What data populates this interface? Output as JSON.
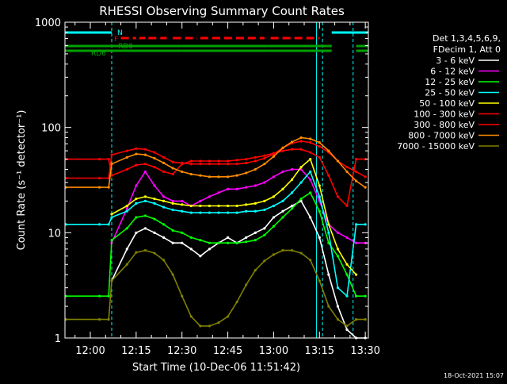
{
  "chart_data": {
    "type": "line",
    "title": "RHESSI Observing Summary Count Rates",
    "xlabel": "Start Time (10-Dec-06 11:51:42)",
    "ylabel": "Count Rate (s⁻¹ detector⁻¹)",
    "yscale": "log",
    "ylim": [
      1,
      1000
    ],
    "xlim": [
      "11:51:42",
      "13:31:00"
    ],
    "x_ticks": [
      "12:00",
      "12:15",
      "12:30",
      "12:45",
      "13:00",
      "13:15",
      "13:30"
    ],
    "y_ticks": [
      "1",
      "10",
      "100",
      "1000"
    ],
    "footer": "18-Oct-2021 15:07",
    "legend_header": [
      "Det 1,3,4,5,6,9,",
      "FDecim 1, Att 0"
    ],
    "legend_position": "right",
    "flags": [
      {
        "label": "N",
        "color": "#00ffff",
        "segments": [
          [
            "11:51:42",
            "12:07:00"
          ],
          [
            "13:19:00",
            "13:31:00"
          ]
        ]
      },
      {
        "label": "F",
        "color": "#ff0000",
        "segments": [
          [
            "12:10:00",
            "12:15:00"
          ],
          [
            "12:16:00",
            "12:18:00"
          ],
          [
            "12:19:00",
            "12:25:00"
          ],
          [
            "12:27:00",
            "12:30:00"
          ],
          [
            "12:31:00",
            "12:35:00"
          ],
          [
            "12:36:00",
            "12:57:00"
          ],
          [
            "12:59:00",
            "13:15:00"
          ]
        ]
      },
      {
        "label": "RD0",
        "color": "#00a000",
        "segments": [
          [
            "11:51:42",
            "12:30:00"
          ],
          [
            "12:30:00",
            "12:58:00"
          ],
          [
            "12:58:00",
            "13:19:00"
          ],
          [
            "13:27:00",
            "13:31:00"
          ]
        ]
      },
      {
        "label": "RD6",
        "color": "#00a000",
        "segments": [
          [
            "11:51:42",
            "12:30:00"
          ],
          [
            "12:30:00",
            "12:58:00"
          ],
          [
            "12:58:00",
            "13:19:00"
          ],
          [
            "13:27:00",
            "13:31:00"
          ]
        ]
      }
    ],
    "vlines": [
      {
        "time": "12:07:00",
        "style": "dashed",
        "color": "#00ffff"
      },
      {
        "time": "13:14:00",
        "style": "solid",
        "color": "#00ffff"
      },
      {
        "time": "13:16:00",
        "style": "dashed",
        "color": "#00ffff"
      },
      {
        "time": "13:26:00",
        "style": "dashed",
        "color": "#00ffff"
      }
    ],
    "x": [
      "11:52",
      "12:03",
      "12:06",
      "12:07",
      "12:12",
      "12:15",
      "12:18",
      "12:21",
      "12:24",
      "12:27",
      "12:30",
      "12:33",
      "12:36",
      "12:39",
      "12:42",
      "12:45",
      "12:48",
      "12:51",
      "12:54",
      "12:57",
      "13:00",
      "13:03",
      "13:06",
      "13:09",
      "13:12",
      "13:15",
      "13:18",
      "13:21",
      "13:24",
      "13:27",
      "13:30"
    ],
    "series": [
      {
        "name": "3 - 6 keV",
        "color": "#ffffff",
        "values": [
          null,
          null,
          null,
          3.5,
          7,
          10,
          11,
          10,
          9,
          8,
          8,
          7,
          6,
          7,
          8,
          9,
          8,
          9,
          10,
          11,
          14,
          16,
          18,
          20,
          14,
          9,
          4,
          2,
          1.2,
          1,
          1
        ]
      },
      {
        "name": "6 - 12 keV",
        "color": "#ff00ff",
        "values": [
          null,
          null,
          null,
          8,
          17,
          28,
          38,
          28,
          22,
          20,
          20,
          18,
          20,
          22,
          24,
          26,
          26,
          27,
          28,
          30,
          34,
          38,
          40,
          40,
          32,
          20,
          12,
          10,
          9,
          8,
          8
        ]
      },
      {
        "name": "12 - 25 keV",
        "color": "#00ff00",
        "values": [
          2.5,
          2.5,
          2.5,
          8.5,
          11,
          14,
          14.5,
          13.5,
          12,
          10.5,
          10,
          9,
          8.5,
          8,
          8,
          8,
          8,
          8.2,
          8.5,
          9.5,
          11.5,
          14,
          17,
          21,
          24,
          16,
          8,
          6,
          4,
          2.5,
          2.5
        ]
      },
      {
        "name": "25 - 50 keV",
        "color": "#00ffff",
        "values": [
          12,
          12,
          12,
          14,
          16,
          19,
          20,
          19,
          17.5,
          16.5,
          16,
          15.5,
          15.5,
          15.5,
          15.5,
          15.5,
          15.5,
          16,
          16,
          16.5,
          18,
          20,
          24,
          30,
          38,
          22,
          10,
          3,
          2.5,
          12,
          12
        ]
      },
      {
        "name": "50 - 100 keV",
        "color": "#ffff00",
        "values": [
          null,
          null,
          null,
          15,
          18,
          21,
          22,
          21,
          20,
          19,
          18.5,
          18,
          18,
          18,
          18,
          18,
          18,
          18.5,
          19,
          20,
          22,
          26,
          32,
          42,
          50,
          28,
          12,
          7,
          5,
          4,
          null
        ]
      },
      {
        "name": "100 - 300 keV",
        "color": "#ff0000",
        "values": [
          50,
          50,
          50,
          35,
          40,
          44,
          45,
          42,
          38,
          36,
          45,
          48,
          48,
          48,
          48,
          48,
          49,
          50,
          52,
          54,
          57,
          60,
          62,
          62,
          58,
          52,
          35,
          22,
          18,
          50,
          50
        ]
      },
      {
        "name": "300 - 800 keV",
        "color": "#ff0000",
        "values": [
          33,
          33,
          33,
          55,
          60,
          63,
          62,
          58,
          52,
          47,
          46,
          45,
          45,
          45,
          45,
          45,
          45,
          46,
          48,
          51,
          56,
          64,
          71,
          74,
          72,
          66,
          58,
          48,
          42,
          38,
          34
        ]
      },
      {
        "name": "800 - 7000 keV",
        "color": "#ff8c00",
        "values": [
          27,
          27,
          27,
          45,
          52,
          56,
          55,
          51,
          46,
          41,
          38,
          36,
          35,
          34,
          34,
          34,
          35,
          37,
          40,
          45,
          53,
          64,
          73,
          80,
          78,
          72,
          60,
          48,
          38,
          31,
          27
        ]
      },
      {
        "name": "7000 - 15000 keV",
        "color": "#808000",
        "values": [
          1.5,
          1.5,
          1.5,
          3.5,
          5,
          6.5,
          6.8,
          6.4,
          5.5,
          4,
          2.5,
          1.6,
          1.3,
          1.3,
          1.4,
          1.6,
          2.2,
          3.2,
          4.4,
          5.4,
          6.2,
          6.8,
          6.8,
          6.4,
          5.5,
          3.5,
          2,
          1.5,
          1.3,
          1.5,
          1.5
        ]
      }
    ]
  }
}
